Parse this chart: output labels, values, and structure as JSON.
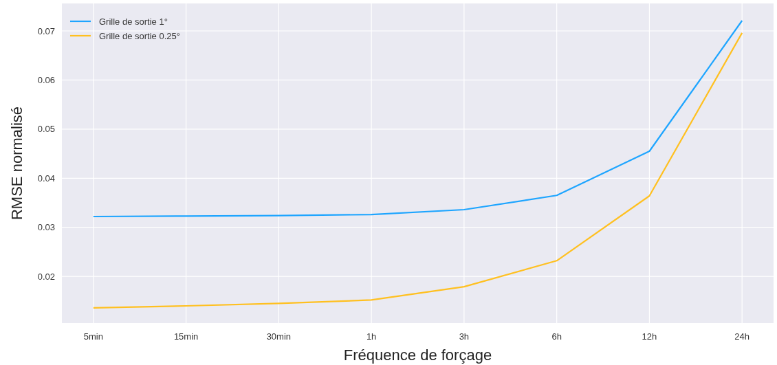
{
  "chart_data": {
    "type": "line",
    "xlabel": "Fréquence de forçage",
    "ylabel": "RMSE normalisé",
    "categories": [
      "5min",
      "15min",
      "30min",
      "1h",
      "3h",
      "6h",
      "12h",
      "24h"
    ],
    "series": [
      {
        "name": "Grille de sortie 1°",
        "color": "#1ea5ff",
        "values": [
          0.0322,
          0.0323,
          0.0324,
          0.0326,
          0.0336,
          0.0365,
          0.0455,
          0.0721
        ]
      },
      {
        "name": "Grille de sortie 0.25°",
        "color": "#ffc020",
        "values": [
          0.0136,
          0.014,
          0.0145,
          0.0152,
          0.0179,
          0.0232,
          0.0364,
          0.0696
        ]
      }
    ],
    "ylim": [
      0.0105,
      0.0756
    ],
    "yticks": [
      0.02,
      0.03,
      0.04,
      0.05,
      0.06,
      0.07
    ],
    "grid": true,
    "legend": "top left",
    "marker": "none",
    "line_style": "solid"
  }
}
